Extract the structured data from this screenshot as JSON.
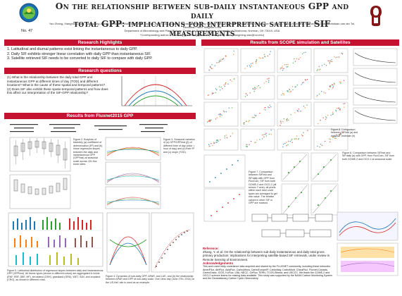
{
  "header": {
    "title_line1": "On the relationship between sub-daily instantaneous GPP and daily",
    "title_line2": "total GPP: implications for interpreting satellite SIF measurements",
    "authors": "Yao Zhang, Xiangming Xiao, Yongguang Zhang, Sebastian Wolf, Sha Zhou, Joanna Joiner, Luis Guanter, Manish Verma, Ying Sun, Xi Yang, Eugénie Paul-Limoges, Christopher M. Gough, Georg Wohlfahrt, Beniamino Gioli, Christiaan van der Tol, Nicouleau Yann, Magnus Lund",
    "affiliation": "Department of Microbiology and Plant Biology, Center for Spatial Analysis, University of Oklahoma, Norman, OK 73019, USA",
    "contact": "*Corresponding author: Yao Zhang (yaozhang@ou.edu), Xiangming Xiao (xiangming.xiao@ou.edu)",
    "poster_number": "No. 47"
  },
  "sections": {
    "highlights": "Research Highlights",
    "questions": "Research questions",
    "fluxnet": "Results from Fluxnet2015 GPP",
    "scope": "Results from SCOPE simulation and Satellites"
  },
  "highlights": [
    "1.  Latitudinal and diurnal patterns exist linking the instantaneous to daily GPP.",
    "2.  Daily SIF exhibits stronger linear correlation with daily GPP than instantaneous SIF.",
    "3.  Satellite retrieved SIF needs to be converted to daily SIF to compare with daily GPP."
  ],
  "questions": [
    "(1)  What is the relationship between the daily total GPP and instantaneous GPP at different times of day (TOD) and different locations? What is the cause of these spatial and temporal patterns?",
    "(2)  Does SIF also exhibit these spatio-temporal patterns and how does this affect our interpretation of the SIF-GPP relationship?"
  ],
  "captions": {
    "fig2": "Figure 2. Boxplots of biweekly (a) coefficient of determination (R²) and (b) linear regression slopes between the daily and instantaneous GPP (GPPinst) at seasonal scale across 151 flux tower sites.",
    "fig3": "Figure 3. Seasonal variation of (a) GPP/GPPinst (β) of different time of day (color = hour of day) and (b) their R² and (c) slope (TOD).",
    "fig4": "Figure 4. Dynamics of sub-daily GPP, APAR, and LUE, and (b) the relationship between APAR and GPP at sub-daily scale. One clear day (June 17th, 2014) at the US-Ne1 site is used as an example.",
    "fig5": "Figure 5. Latitudinal distribution of regression slopes between daily and instantaneous GPP (GPPinst). All biome types (shown in different colors) are aggregated in forest (ENF, EBF, DBF, MF), shrubland (OSH), grassland (GRA), WET, SAV, and cropland (CRO), as shown in different rows.",
    "fig6": "Figure 6. Comparison between SIFinst and SIFdaily (a) with GPP, from FluxCom, SIF from both GOME-2 and OCO-2 at seasonal scale.",
    "fig7": "Figure 7. Comparison between SIFinst and SIFdaily with GPP from FluxCom, SIF from both GOME-2 and OCO-2 (all sensor Y axis); all pixels within each land cover types are averaged to get one value. The relative values in other SIF or GPP are marked.",
    "fig8": "Figure 8. Comparison between SIFinst (a) and daily SIF estimate (b)."
  },
  "reference": {
    "title": "Reference:",
    "text": "Zhang, Y. et al. On the relationship between sub-daily instantaneous and daily total gross primary production: implications for interpreting satellite-based SIF retrievals, under review in Remote Sensing of Environment."
  },
  "acknowledgements": {
    "title": "Acknowledgements",
    "text": "This work used eddy covariance data acquired and shared by the FLUXNET community, including these networks: AmeriFlux, AfriFlux, AsiaFlux, CarboAfrica, CarboEuropeIP, CarboItaly, CarboMont, ChinaFlux, Fluxnet-Canada, GreenGrass, ICOS, KoFlux, LBA, NECC, OzFlux-TERN, TCOS-Siberia, and USCCC. We thank the GOME-2 and OCO-2 science teams for making data available. This study was supported by the NASA Carbon Monitoring System and the Geostationary Carbon Cycle Observatory."
  },
  "plot_labels": {
    "scope_panels": [
      "a",
      "b",
      "c",
      "d",
      "e",
      "f",
      "g",
      "h"
    ],
    "sites": [
      "US-Ne1",
      "DE-Geb",
      "IT-Col",
      "CA-Qfo"
    ],
    "fig6_panels": [
      "GOME-2",
      "OCO-2"
    ],
    "latitude_panels": [
      "Forest",
      "Shrubland",
      "Grassland",
      "Cropland",
      "Wetland",
      "Savanna"
    ],
    "lat_axis": "Latitude",
    "slope_axis": "Slope",
    "doy_axis": "DOY"
  },
  "colors": {
    "banner": "#c41230",
    "title_text": "#222222",
    "ou_crimson": "#841617",
    "scatter_red": "#d62728",
    "scatter_blue": "#1f77b4",
    "scatter_green": "#2ca02c"
  }
}
